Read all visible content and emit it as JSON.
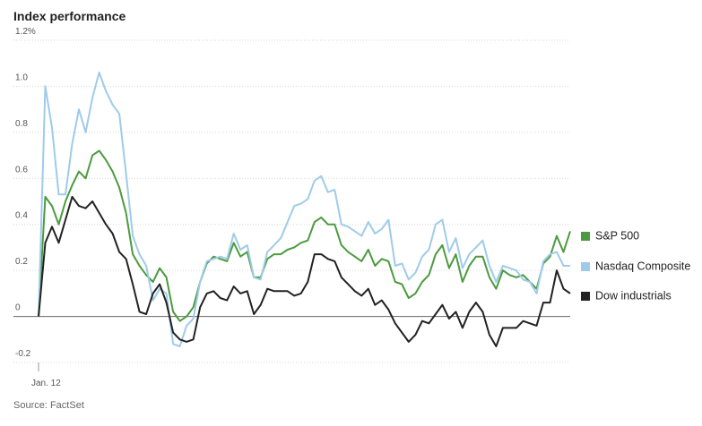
{
  "chart_data": {
    "type": "line",
    "title": "Index performance",
    "source": "Source: FactSet",
    "categories": [
      "Jan. 12",
      null,
      null,
      null,
      null,
      null,
      null,
      null,
      null,
      null,
      null,
      null,
      null,
      null,
      null,
      null,
      null,
      null,
      null,
      null,
      null,
      null,
      null,
      null,
      null,
      null,
      null,
      null,
      null,
      null,
      null,
      null,
      null,
      null,
      null,
      null,
      null,
      null,
      null,
      null,
      null,
      null,
      null,
      null,
      null,
      null,
      null,
      null,
      null,
      null,
      null,
      null,
      null,
      null,
      null,
      null,
      null,
      null,
      null,
      null,
      null,
      null,
      null,
      null,
      null,
      null,
      null,
      null,
      null,
      null,
      null,
      null,
      null,
      null,
      null,
      null,
      null,
      null,
      null,
      null
    ],
    "ylim": [
      -0.2,
      1.2
    ],
    "yticks": [
      -0.2,
      0,
      0.2,
      0.4,
      0.6,
      0.8,
      {
        "value": 1,
        "label": "1.0"
      },
      {
        "value": 1.2,
        "label": "1.2%"
      }
    ],
    "grid": true,
    "legend": "right",
    "series": [
      {
        "name": "S&P 500",
        "color": "#4b9b3e",
        "values": [
          0,
          0.52,
          0.48,
          0.4,
          0.5,
          0.57,
          0.63,
          0.6,
          0.7,
          0.72,
          0.68,
          0.63,
          0.56,
          0.45,
          0.27,
          0.22,
          0.18,
          0.15,
          0.21,
          0.17,
          0.02,
          -0.02,
          0.0,
          0.04,
          0.15,
          0.23,
          0.26,
          0.25,
          0.24,
          0.32,
          0.26,
          0.28,
          0.17,
          0.17,
          0.25,
          0.27,
          0.27,
          0.29,
          0.3,
          0.32,
          0.33,
          0.41,
          0.43,
          0.4,
          0.4,
          0.31,
          0.28,
          0.26,
          0.24,
          0.29,
          0.22,
          0.25,
          0.24,
          0.15,
          0.14,
          0.08,
          0.1,
          0.15,
          0.18,
          0.27,
          0.31,
          0.21,
          0.27,
          0.15,
          0.22,
          0.26,
          0.26,
          0.17,
          0.12,
          0.2,
          0.18,
          0.17,
          0.18,
          0.15,
          0.12,
          0.23,
          0.26,
          0.35,
          0.28,
          0.37
        ]
      },
      {
        "name": "Nasdaq Composite",
        "color": "#9fcbea",
        "values": [
          0,
          1.0,
          0.82,
          0.53,
          0.53,
          0.75,
          0.9,
          0.8,
          0.95,
          1.06,
          0.98,
          0.92,
          0.88,
          0.62,
          0.35,
          0.27,
          0.22,
          0.07,
          0.12,
          0.1,
          -0.12,
          -0.13,
          -0.04,
          -0.01,
          0.15,
          0.24,
          0.25,
          0.26,
          0.25,
          0.36,
          0.29,
          0.31,
          0.17,
          0.16,
          0.28,
          0.31,
          0.34,
          0.41,
          0.48,
          0.49,
          0.51,
          0.59,
          0.61,
          0.54,
          0.55,
          0.4,
          0.39,
          0.37,
          0.35,
          0.41,
          0.36,
          0.38,
          0.42,
          0.22,
          0.23,
          0.16,
          0.19,
          0.26,
          0.29,
          0.4,
          0.42,
          0.28,
          0.34,
          0.21,
          0.27,
          0.3,
          0.33,
          0.22,
          0.15,
          0.22,
          0.21,
          0.2,
          0.16,
          0.15,
          0.1,
          0.24,
          0.27,
          0.28,
          0.22,
          0.22
        ]
      },
      {
        "name": "Dow industrials",
        "color": "#222222",
        "values": [
          0,
          0.32,
          0.39,
          0.32,
          0.42,
          0.52,
          0.48,
          0.47,
          0.5,
          0.45,
          0.4,
          0.36,
          0.28,
          0.25,
          0.14,
          0.02,
          0.01,
          0.1,
          0.14,
          0.06,
          -0.07,
          -0.1,
          -0.11,
          -0.1,
          0.04,
          0.1,
          0.11,
          0.08,
          0.07,
          0.13,
          0.1,
          0.11,
          0.01,
          0.05,
          0.12,
          0.11,
          0.11,
          0.11,
          0.09,
          0.1,
          0.15,
          0.27,
          0.27,
          0.25,
          0.24,
          0.17,
          0.14,
          0.11,
          0.09,
          0.12,
          0.05,
          0.07,
          0.03,
          -0.03,
          -0.07,
          -0.11,
          -0.08,
          -0.02,
          -0.03,
          0.01,
          0.05,
          -0.01,
          0.02,
          -0.05,
          0.02,
          0.06,
          0.02,
          -0.08,
          -0.13,
          -0.05,
          -0.05,
          -0.05,
          -0.02,
          -0.03,
          -0.04,
          0.06,
          0.06,
          0.2,
          0.12,
          0.1
        ]
      }
    ]
  }
}
